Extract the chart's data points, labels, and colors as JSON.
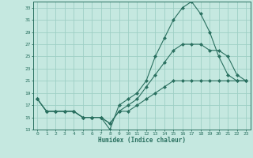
{
  "xlabel": "Humidex (Indice chaleur)",
  "background_color": "#c5e8e0",
  "grid_color": "#9ecfc5",
  "line_color": "#2a7060",
  "xlim": [
    -0.5,
    23.5
  ],
  "ylim": [
    13,
    34
  ],
  "yticks": [
    13,
    15,
    17,
    19,
    21,
    23,
    25,
    27,
    29,
    31,
    33
  ],
  "xticks": [
    0,
    1,
    2,
    3,
    4,
    5,
    6,
    7,
    8,
    9,
    10,
    11,
    12,
    13,
    14,
    15,
    16,
    17,
    18,
    19,
    20,
    21,
    22,
    23
  ],
  "series1_x": [
    0,
    1,
    2,
    3,
    4,
    5,
    6,
    7,
    8,
    9,
    10,
    11,
    12,
    13,
    14,
    15,
    16,
    17,
    18,
    19,
    20,
    21,
    22,
    23
  ],
  "series1_y": [
    18,
    16,
    16,
    16,
    16,
    15,
    15,
    15,
    13,
    17,
    18,
    19,
    21,
    25,
    28,
    31,
    33,
    34,
    32,
    29,
    25,
    22,
    21,
    21
  ],
  "series2_x": [
    0,
    1,
    2,
    3,
    4,
    5,
    6,
    7,
    8,
    9,
    10,
    11,
    12,
    13,
    14,
    15,
    16,
    17,
    18,
    19,
    20,
    21,
    22,
    23
  ],
  "series2_y": [
    18,
    16,
    16,
    16,
    16,
    15,
    15,
    15,
    14,
    16,
    17,
    18,
    20,
    22,
    24,
    26,
    27,
    27,
    27,
    26,
    26,
    25,
    22,
    21
  ],
  "series3_x": [
    0,
    1,
    2,
    3,
    4,
    5,
    6,
    7,
    8,
    9,
    10,
    11,
    12,
    13,
    14,
    15,
    16,
    17,
    18,
    19,
    20,
    21,
    22,
    23
  ],
  "series3_y": [
    18,
    16,
    16,
    16,
    16,
    15,
    15,
    15,
    14,
    16,
    16,
    17,
    18,
    19,
    20,
    21,
    21,
    21,
    21,
    21,
    21,
    21,
    21,
    21
  ]
}
